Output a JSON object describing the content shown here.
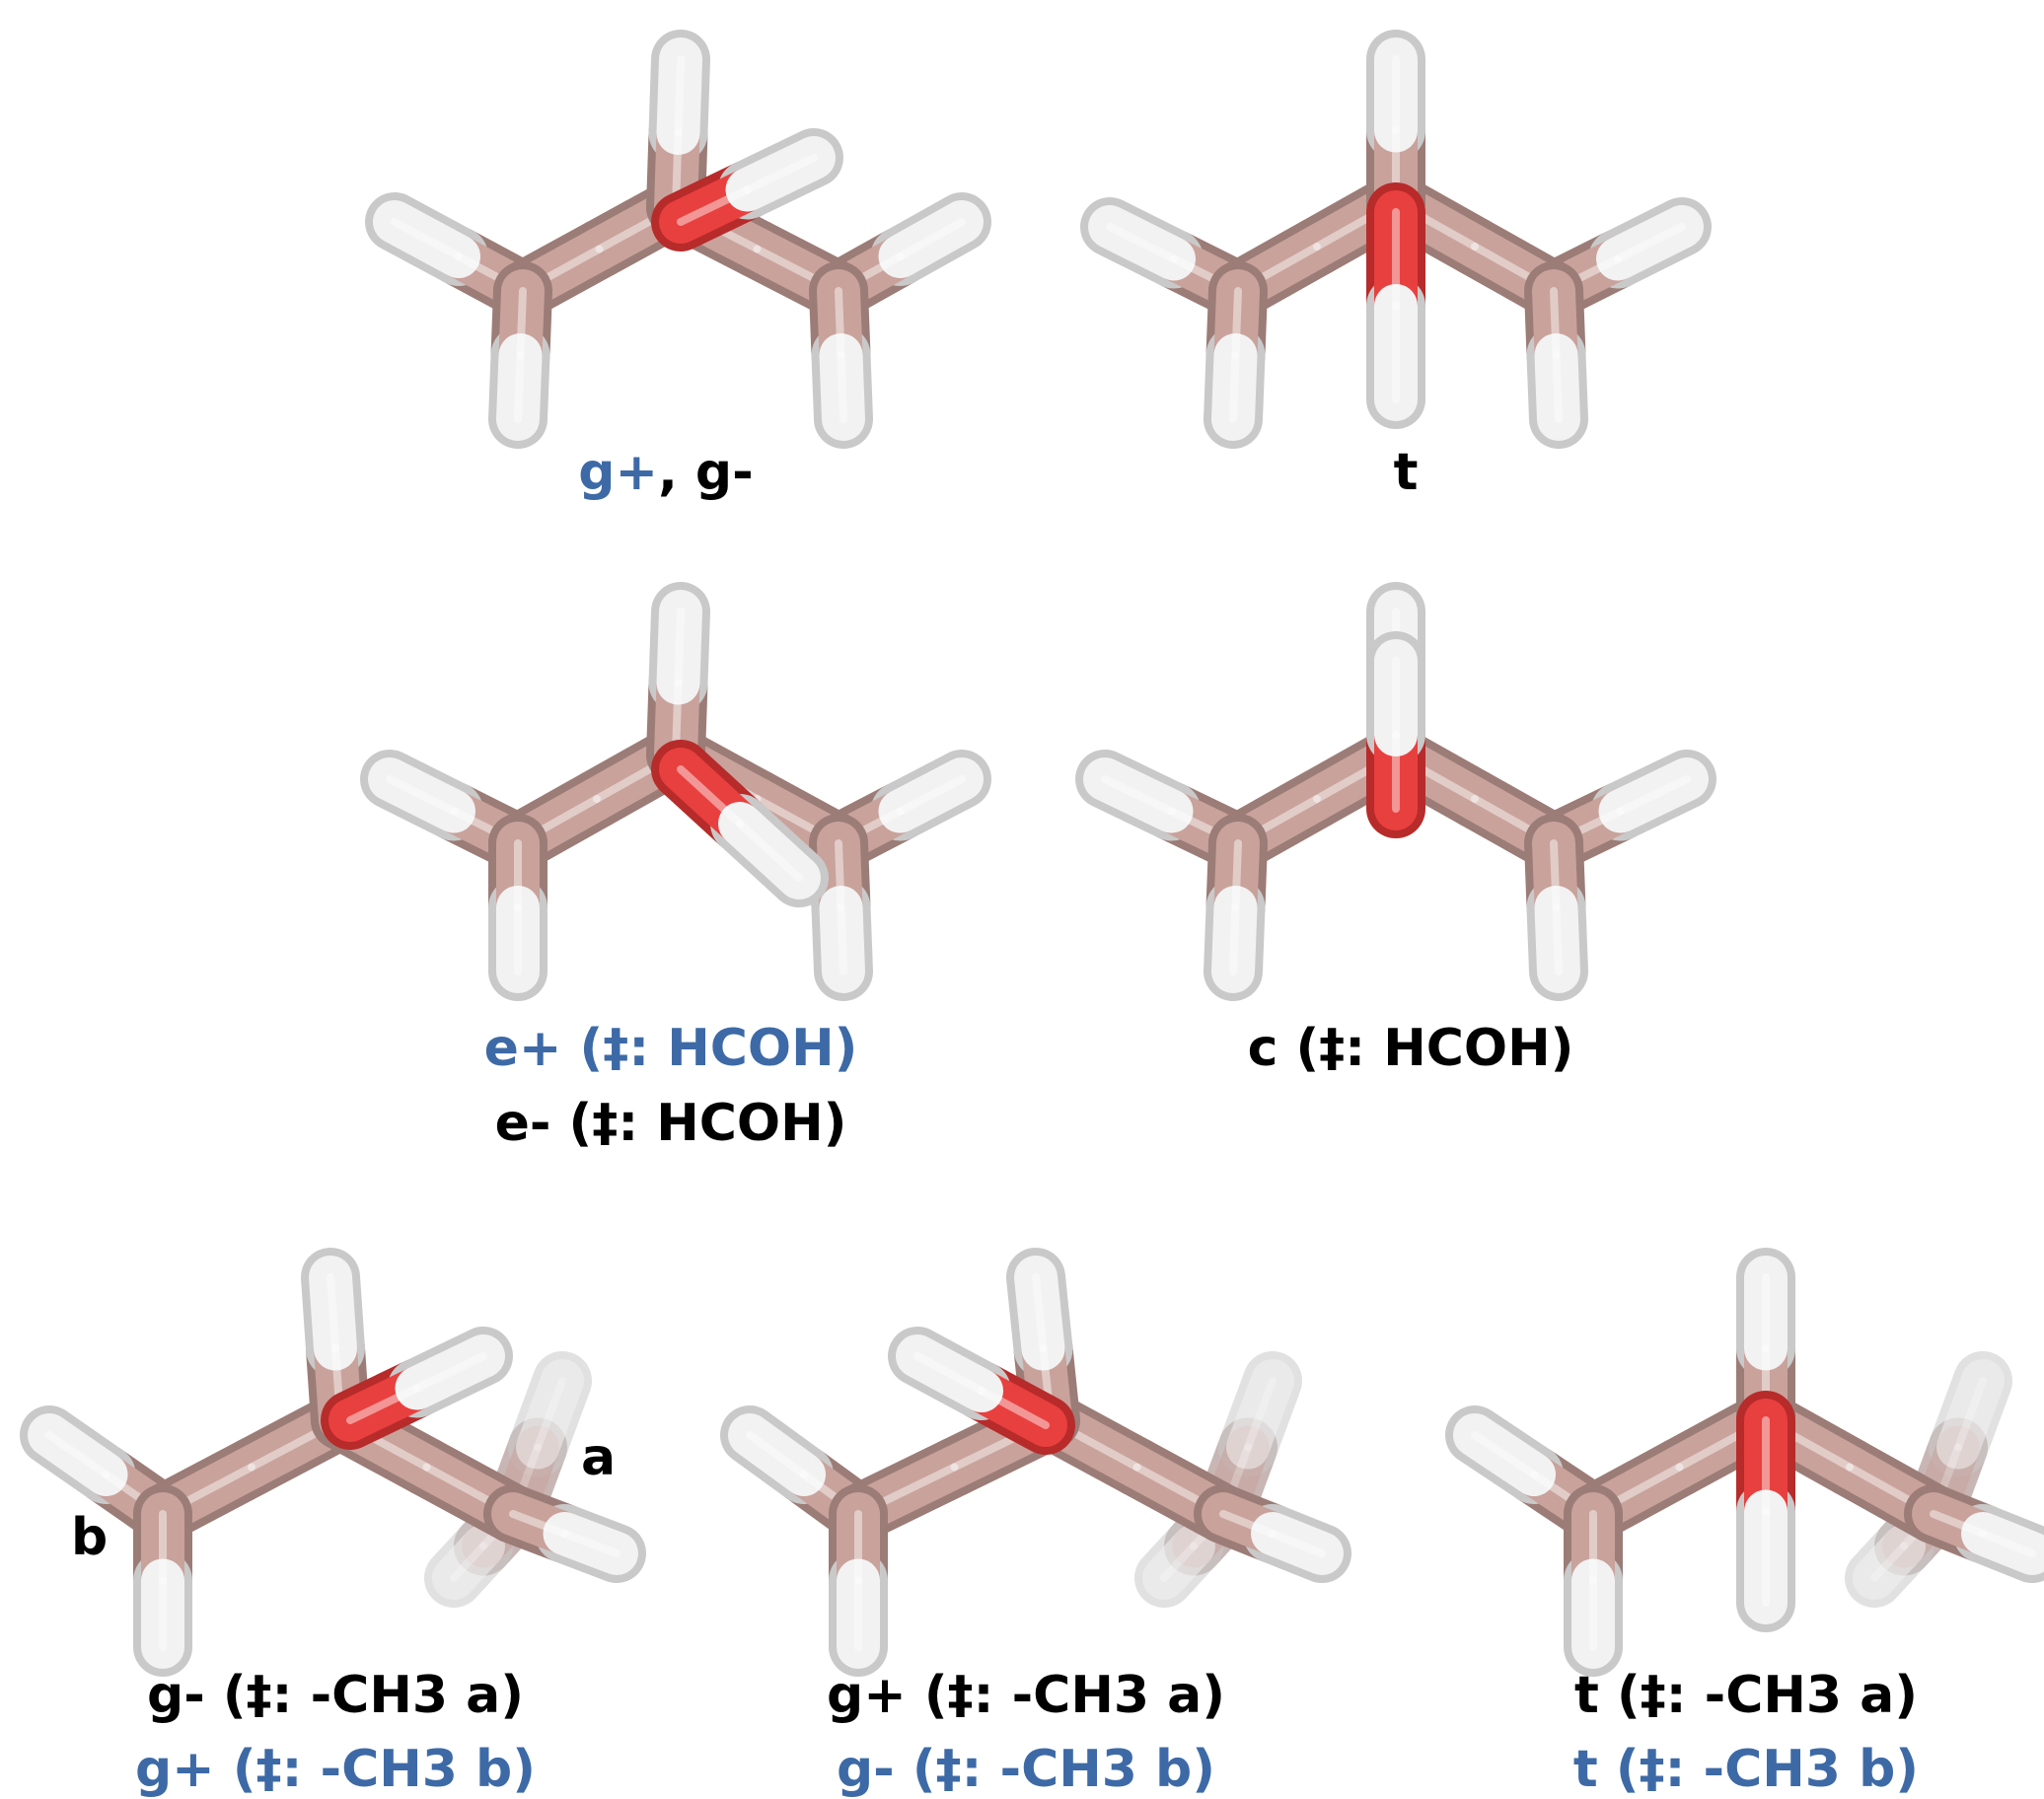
{
  "colors": {
    "carbon": "#c9a29c",
    "carbon_dark": "#9c7c77",
    "oxygen": "#e8403f",
    "oxygen_dark": "#b72b2a",
    "hydrogen": "#f2f2f2",
    "hydrogen_dark": "#c9c9c9",
    "label_black": "#000000",
    "label_blue": "#3d6aa6"
  },
  "panels": [
    {
      "id": "p1",
      "lines": [
        [
          {
            "text": "g+",
            "color": "blue"
          },
          {
            "text": ", g-",
            "color": "black"
          }
        ]
      ]
    },
    {
      "id": "p2",
      "lines": [
        [
          {
            "text": "t",
            "color": "black"
          }
        ]
      ]
    },
    {
      "id": "p3",
      "lines": [
        [
          {
            "text": "e+ (‡: HCOH)",
            "color": "blue"
          }
        ],
        [
          {
            "text": "e- (‡: HCOH)",
            "color": "black"
          }
        ]
      ]
    },
    {
      "id": "p4",
      "lines": [
        [
          {
            "text": "c (‡: HCOH)",
            "color": "black"
          }
        ]
      ]
    },
    {
      "id": "p5",
      "lines": [
        [
          {
            "text": "g- (‡: -CH3 a)",
            "color": "black"
          }
        ],
        [
          {
            "text": "g+ (‡: -CH3 b)",
            "color": "blue"
          }
        ]
      ]
    },
    {
      "id": "p6",
      "lines": [
        [
          {
            "text": "g+ (‡: -CH3 a)",
            "color": "black"
          }
        ],
        [
          {
            "text": "g- (‡: -CH3 b)",
            "color": "blue"
          }
        ]
      ]
    },
    {
      "id": "p7",
      "lines": [
        [
          {
            "text": "t (‡: -CH3 a)",
            "color": "black"
          }
        ],
        [
          {
            "text": "t (‡: -CH3 b)",
            "color": "blue"
          }
        ]
      ]
    }
  ],
  "atom_labels": {
    "a": "a",
    "b": "b"
  }
}
